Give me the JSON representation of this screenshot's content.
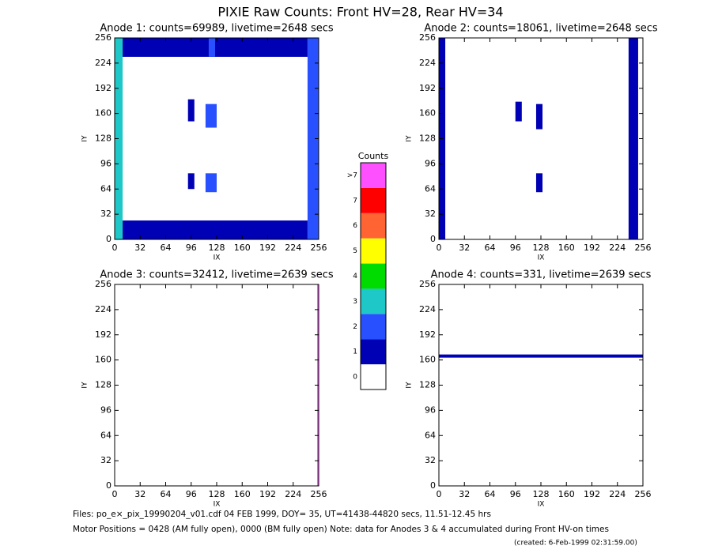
{
  "chart_data": {
    "type": "image-panels",
    "title": "PIXIE Raw Counts:  Front HV=28, Rear HV=34",
    "colorbar": {
      "title": "Counts",
      "levels": [
        "0",
        "1",
        "2",
        "3",
        "4",
        "5",
        "6",
        "7",
        ">7"
      ],
      "colors": [
        "#ffffff",
        "#0000b4",
        "#2850ff",
        "#1ec8c8",
        "#00dc00",
        "#ffff00",
        "#ff6432",
        "#ff0000",
        "#ff50ff"
      ]
    },
    "panels": [
      {
        "title": "Anode 1: counts=69989, livetime=2648 secs",
        "xlabel": "IX",
        "ylabel": "IY",
        "xlim": [
          0,
          256
        ],
        "ylim": [
          0,
          256
        ],
        "xticks": [
          0,
          32,
          64,
          96,
          128,
          160,
          192,
          224,
          256
        ],
        "yticks": [
          0,
          32,
          64,
          96,
          128,
          160,
          192,
          224,
          256
        ],
        "features": [
          {
            "x": [
              0,
              10
            ],
            "y": [
              0,
              256
            ],
            "level": 3
          },
          {
            "x": [
              242,
              256
            ],
            "y": [
              0,
              256
            ],
            "level": 2
          },
          {
            "x": [
              10,
              242
            ],
            "y": [
              0,
              24
            ],
            "level": 1
          },
          {
            "x": [
              10,
              242
            ],
            "y": [
              232,
              256
            ],
            "level": 1
          },
          {
            "x": [
              114,
              128
            ],
            "y": [
              60,
              84
            ],
            "level": 2
          },
          {
            "x": [
              114,
              128
            ],
            "y": [
              142,
              172
            ],
            "level": 2
          },
          {
            "x": [
              92,
              100
            ],
            "y": [
              64,
              84
            ],
            "level": 1
          },
          {
            "x": [
              92,
              100
            ],
            "y": [
              150,
              178
            ],
            "level": 1
          },
          {
            "x": [
              118,
              126
            ],
            "y": [
              232,
              256
            ],
            "level": 2
          }
        ]
      },
      {
        "title": "Anode 2: counts=18061, livetime=2648 secs",
        "xlabel": "IX",
        "ylabel": "IY",
        "xlim": [
          0,
          256
        ],
        "ylim": [
          0,
          256
        ],
        "xticks": [
          0,
          32,
          64,
          96,
          128,
          160,
          192,
          224,
          256
        ],
        "yticks": [
          0,
          32,
          64,
          96,
          128,
          160,
          192,
          224,
          256
        ],
        "features": [
          {
            "x": [
              0,
              8
            ],
            "y": [
              0,
              256
            ],
            "level": 1
          },
          {
            "x": [
              238,
              250
            ],
            "y": [
              0,
              256
            ],
            "level": 1
          },
          {
            "x": [
              122,
              130
            ],
            "y": [
              60,
              84
            ],
            "level": 1
          },
          {
            "x": [
              122,
              130
            ],
            "y": [
              140,
              172
            ],
            "level": 1
          },
          {
            "x": [
              96,
              104
            ],
            "y": [
              150,
              175
            ],
            "level": 1
          }
        ]
      },
      {
        "title": "Anode 3: counts=32412, livetime=2639 secs",
        "xlabel": "IX",
        "ylabel": "IY",
        "xlim": [
          0,
          256
        ],
        "ylim": [
          0,
          256
        ],
        "xticks": [
          0,
          32,
          64,
          96,
          128,
          160,
          192,
          224,
          256
        ],
        "yticks": [
          0,
          32,
          64,
          96,
          128,
          160,
          192,
          224,
          256
        ],
        "features": [
          {
            "x": [
              254,
              256
            ],
            "y": [
              0,
              256
            ],
            "level": 8
          }
        ]
      },
      {
        "title": "Anode 4: counts=331, livetime=2639 secs",
        "xlabel": "IX",
        "ylabel": "IY",
        "xlim": [
          0,
          256
        ],
        "ylim": [
          0,
          256
        ],
        "xticks": [
          0,
          32,
          64,
          96,
          128,
          160,
          192,
          224,
          256
        ],
        "yticks": [
          0,
          32,
          64,
          96,
          128,
          160,
          192,
          224,
          256
        ],
        "features": [
          {
            "x": [
              0,
              256
            ],
            "y": [
              163,
              167
            ],
            "level": 1
          }
        ]
      }
    ],
    "footer": [
      "Files: po_e×_pix_19990204_v01.cdf    04 FEB 1999, DOY= 35, UT=41438-44820 secs, 11.51-12.45 hrs",
      "Motor Positions = 0428 (AM fully open), 0000 (BM fully open)    Note: data for Anodes 3 & 4 accumulated during Front HV-on times"
    ],
    "created": "(created:  6-Feb-1999 02:31:59.00)"
  }
}
